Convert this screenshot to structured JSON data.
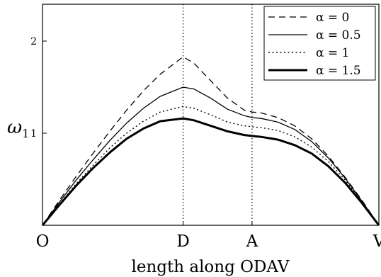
{
  "chart_data": {
    "type": "line",
    "title": "",
    "xlabel": "length along ODAV",
    "ylabel": "ω",
    "ylabel_sub": "1",
    "xlim": [
      0,
      1
    ],
    "ylim": [
      0,
      2.4
    ],
    "x_ticks": [
      {
        "label": "O",
        "x": 0.0
      },
      {
        "label": "D",
        "x": 0.418
      },
      {
        "label": "A",
        "x": 0.623
      },
      {
        "label": "V",
        "x": 1.0
      }
    ],
    "y_ticks": [
      {
        "label": "1",
        "y": 1
      },
      {
        "label": "2",
        "y": 2
      }
    ],
    "vertical_lines": [
      0.418,
      0.623
    ],
    "legend_placement": "top-right",
    "grid": false,
    "x": [
      0,
      0.05,
      0.1,
      0.15,
      0.2,
      0.25,
      0.3,
      0.35,
      0.418,
      0.45,
      0.5,
      0.55,
      0.6,
      0.623,
      0.65,
      0.7,
      0.75,
      0.8,
      0.85,
      0.9,
      0.95,
      1.0
    ],
    "series": [
      {
        "name": "α = 0",
        "style": "dashed",
        "width": 1.3,
        "values": [
          0,
          0.27,
          0.53,
          0.78,
          1.02,
          1.25,
          1.46,
          1.64,
          1.83,
          1.76,
          1.57,
          1.38,
          1.25,
          1.23,
          1.22,
          1.17,
          1.08,
          0.94,
          0.75,
          0.52,
          0.27,
          0
        ]
      },
      {
        "name": "α = 0.5",
        "style": "solid",
        "width": 1.3,
        "values": [
          0,
          0.25,
          0.49,
          0.71,
          0.92,
          1.11,
          1.27,
          1.4,
          1.5,
          1.48,
          1.38,
          1.26,
          1.19,
          1.17,
          1.16,
          1.12,
          1.04,
          0.91,
          0.73,
          0.51,
          0.26,
          0
        ]
      },
      {
        "name": "α = 1",
        "style": "dotted",
        "width": 1.4,
        "values": [
          0,
          0.23,
          0.45,
          0.65,
          0.84,
          1.0,
          1.13,
          1.23,
          1.29,
          1.27,
          1.2,
          1.12,
          1.08,
          1.07,
          1.06,
          1.03,
          0.96,
          0.85,
          0.69,
          0.49,
          0.25,
          0
        ]
      },
      {
        "name": "α = 1.5",
        "style": "solid",
        "width": 3,
        "values": [
          0,
          0.22,
          0.43,
          0.62,
          0.79,
          0.94,
          1.05,
          1.13,
          1.16,
          1.14,
          1.08,
          1.02,
          0.98,
          0.97,
          0.96,
          0.93,
          0.87,
          0.78,
          0.64,
          0.46,
          0.24,
          0
        ]
      }
    ]
  }
}
